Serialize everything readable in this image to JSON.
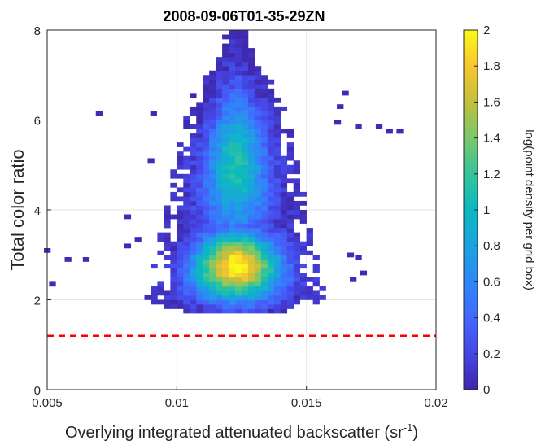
{
  "chart_data": {
    "type": "heatmap",
    "title": "2008-09-06T01-35-29ZN",
    "xlabel": "Overlying integrated attenuated backscatter (sr",
    "xlabel_superscript": "-1",
    "xlabel_suffix": ")",
    "ylabel": "Total color ratio",
    "xlim": [
      0.005,
      0.02
    ],
    "ylim": [
      0,
      8
    ],
    "xticks": [
      0.005,
      0.01,
      0.015,
      0.02
    ],
    "xtick_labels": [
      "0.005",
      "0.01",
      "0.015",
      "0.02"
    ],
    "yticks": [
      0,
      2,
      4,
      6,
      8
    ],
    "ytick_labels": [
      "0",
      "2",
      "4",
      "6",
      "8"
    ],
    "grid": true,
    "colormap": "parula",
    "colorbar": {
      "label": "log(point density per grid box)",
      "range": [
        0,
        2
      ],
      "ticks": [
        0,
        0.2,
        0.4,
        0.6,
        0.8,
        1,
        1.2,
        1.4,
        1.6,
        1.8,
        2
      ],
      "tick_labels": [
        "0",
        "0.2",
        "0.4",
        "0.6",
        "0.8",
        "1",
        "1.2",
        "1.4",
        "1.6",
        "1.8",
        "2"
      ]
    },
    "reference_line": {
      "y": 1.2,
      "style": "dashed",
      "color": "#ff0000"
    },
    "density_summary": {
      "peak_x": 0.0123,
      "peak_y": 2.75,
      "peak_value": 2.0,
      "core_x_range": [
        0.0095,
        0.0155
      ],
      "core_y_range": [
        1.8,
        7.9
      ]
    },
    "outlier_points": [
      {
        "x": 0.005,
        "y": 3.1
      },
      {
        "x": 0.0058,
        "y": 2.9
      },
      {
        "x": 0.0052,
        "y": 2.35
      },
      {
        "x": 0.0065,
        "y": 2.9
      },
      {
        "x": 0.007,
        "y": 6.15
      },
      {
        "x": 0.0081,
        "y": 3.85
      },
      {
        "x": 0.0081,
        "y": 3.2
      },
      {
        "x": 0.0085,
        "y": 3.35
      },
      {
        "x": 0.009,
        "y": 5.1
      },
      {
        "x": 0.0091,
        "y": 6.15
      },
      {
        "x": 0.0165,
        "y": 6.6
      },
      {
        "x": 0.0162,
        "y": 5.95
      },
      {
        "x": 0.0167,
        "y": 3.0
      },
      {
        "x": 0.017,
        "y": 5.85
      },
      {
        "x": 0.0178,
        "y": 5.85
      },
      {
        "x": 0.0182,
        "y": 5.75
      },
      {
        "x": 0.0186,
        "y": 5.75
      },
      {
        "x": 0.017,
        "y": 2.95
      },
      {
        "x": 0.0172,
        "y": 2.6
      },
      {
        "x": 0.0168,
        "y": 2.45
      },
      {
        "x": 0.0163,
        "y": 6.3
      }
    ]
  }
}
